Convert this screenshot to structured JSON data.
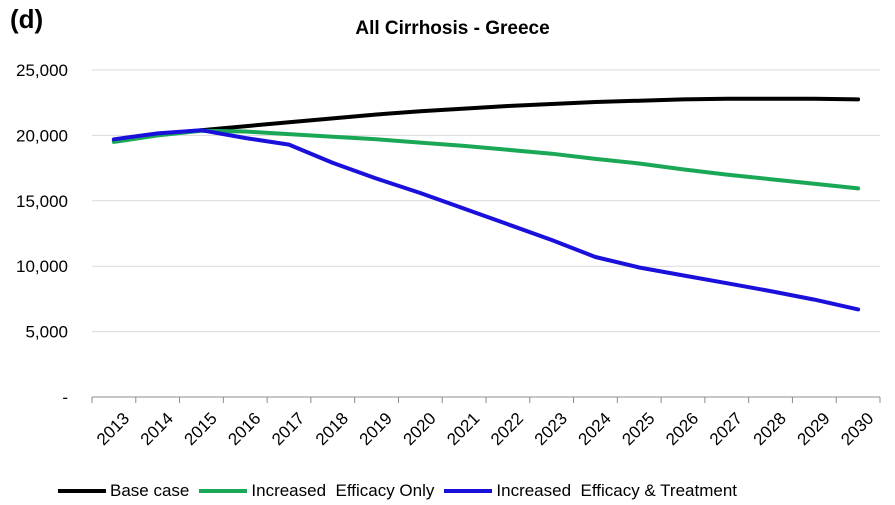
{
  "chart_data": {
    "type": "line",
    "panel_label": "(d)",
    "title": "All Cirrhosis - Greece",
    "xlabel": "",
    "ylabel": "",
    "x": [
      "2013",
      "2014",
      "2015",
      "2016",
      "2017",
      "2018",
      "2019",
      "2020",
      "2021",
      "2022",
      "2023",
      "2024",
      "2025",
      "2026",
      "2027",
      "2028",
      "2029",
      "2030"
    ],
    "y_ticks": [
      0,
      5000,
      10000,
      15000,
      20000,
      25000
    ],
    "y_tick_labels": [
      "-",
      "5,000",
      "10,000",
      "15,000",
      "20,000",
      "25,000"
    ],
    "ylim": [
      0,
      25000
    ],
    "grid": true,
    "legend_position": "bottom",
    "series": [
      {
        "name": "Base case",
        "color": "#000000",
        "values": [
          19600,
          20100,
          20400,
          20700,
          21000,
          21300,
          21600,
          21850,
          22050,
          22250,
          22400,
          22550,
          22650,
          22750,
          22800,
          22800,
          22800,
          22750
        ]
      },
      {
        "name": "Increased  Efficacy Only",
        "color": "#1aa857",
        "values": [
          19500,
          20000,
          20350,
          20300,
          20100,
          19900,
          19700,
          19450,
          19200,
          18900,
          18600,
          18200,
          17850,
          17400,
          17000,
          16650,
          16300,
          15950
        ]
      },
      {
        "name": "Increased  Efficacy & Treatment",
        "color": "#1a10dc",
        "values": [
          19700,
          20150,
          20400,
          19800,
          19300,
          17900,
          16700,
          15600,
          14400,
          13200,
          12000,
          10700,
          9900,
          9300,
          8700,
          8100,
          7450,
          6700
        ]
      }
    ]
  }
}
